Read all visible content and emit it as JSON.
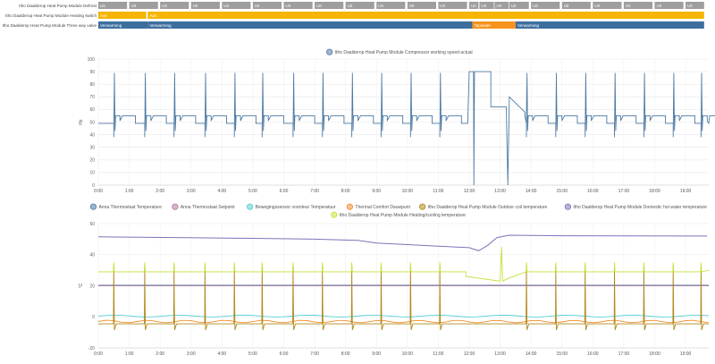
{
  "timeline": {
    "rows": [
      {
        "label": "Itho Daalderop Heat Pump Module Defrost",
        "segments": [
          {
            "text": "Uit",
            "start": 0,
            "end": 0.93,
            "color": "#9e9e9e"
          },
          {
            "text": "Uit",
            "start": 1.0,
            "end": 1.93,
            "color": "#9e9e9e"
          },
          {
            "text": "Uit",
            "start": 2.0,
            "end": 2.93,
            "color": "#9e9e9e"
          },
          {
            "text": "Uit",
            "start": 3.0,
            "end": 3.93,
            "color": "#9e9e9e"
          },
          {
            "text": "Uit",
            "start": 4.0,
            "end": 4.93,
            "color": "#9e9e9e"
          },
          {
            "text": "Uit",
            "start": 5.0,
            "end": 5.93,
            "color": "#9e9e9e"
          },
          {
            "text": "Uit",
            "start": 6.0,
            "end": 6.93,
            "color": "#9e9e9e"
          },
          {
            "text": "Uit",
            "start": 7.0,
            "end": 7.93,
            "color": "#9e9e9e"
          },
          {
            "text": "Uit",
            "start": 8.0,
            "end": 8.93,
            "color": "#9e9e9e"
          },
          {
            "text": "Uit",
            "start": 9.0,
            "end": 9.93,
            "color": "#9e9e9e"
          },
          {
            "text": "Uit",
            "start": 10.0,
            "end": 10.93,
            "color": "#9e9e9e"
          },
          {
            "text": "Uit",
            "start": 11.0,
            "end": 11.93,
            "color": "#9e9e9e"
          },
          {
            "text": "Uit",
            "start": 12.0,
            "end": 12.3,
            "color": "#9e9e9e"
          },
          {
            "text": "Uit",
            "start": 12.33,
            "end": 12.8,
            "color": "#9e9e9e"
          },
          {
            "text": "Uit",
            "start": 12.82,
            "end": 13.28,
            "color": "#9e9e9e"
          },
          {
            "text": "Uit",
            "start": 13.3,
            "end": 13.93,
            "color": "#9e9e9e"
          },
          {
            "text": "Uit",
            "start": 14.0,
            "end": 14.93,
            "color": "#9e9e9e"
          },
          {
            "text": "Uit",
            "start": 15.0,
            "end": 15.93,
            "color": "#9e9e9e"
          },
          {
            "text": "Uit",
            "start": 16.0,
            "end": 16.93,
            "color": "#9e9e9e"
          },
          {
            "text": "Uit",
            "start": 17.0,
            "end": 17.93,
            "color": "#9e9e9e"
          },
          {
            "text": "Uit",
            "start": 18.0,
            "end": 18.93,
            "color": "#9e9e9e"
          },
          {
            "text": "Uit",
            "start": 19.0,
            "end": 19.6,
            "color": "#9e9e9e"
          }
        ]
      },
      {
        "label": "Itho Daalderop Heat Pump Module Heating switch",
        "segments": [
          {
            "text": "Aan",
            "start": 0,
            "end": 1.55,
            "color": "#f5b500"
          },
          {
            "text": "Aan",
            "start": 1.6,
            "end": 19.6,
            "color": "#f5b500"
          }
        ]
      },
      {
        "label": "Itho Daalderop Heat Pump Module Three way valve",
        "segments": [
          {
            "text": "Verwarming",
            "start": 0,
            "end": 1.6,
            "color": "#3d6e9e"
          },
          {
            "text": "Verwarming",
            "start": 1.6,
            "end": 12.1,
            "color": "#3d6e9e"
          },
          {
            "text": "Tapwater",
            "start": 12.1,
            "end": 13.5,
            "color": "#f5931c"
          },
          {
            "text": "Verwarming",
            "start": 13.5,
            "end": 19.6,
            "color": "#3d6e9e"
          }
        ]
      }
    ]
  },
  "chart_data": [
    {
      "type": "line",
      "x_ticks": [
        "0:00",
        "1:00",
        "2:00",
        "3:00",
        "4:00",
        "5:00",
        "6:00",
        "7:00",
        "8:00",
        "9:00",
        "10:00",
        "11:00",
        "12:00",
        "13:00",
        "14:00",
        "15:00",
        "16:00",
        "17:00",
        "18:00",
        "19:00"
      ],
      "ylabel": "Hz",
      "ylim": [
        0,
        100
      ],
      "y_ticks": [
        0,
        10,
        20,
        30,
        40,
        50,
        60,
        70,
        80,
        90,
        100
      ],
      "grid": true,
      "legend_position": "top-center",
      "series": [
        {
          "name": "Itho Daalderop Heat Pump Module Compressor working speed actual",
          "color": "#4e7aa3",
          "baseline": 49,
          "active_level": 55,
          "spike_level": 89,
          "cycle_starts": [
            0.5,
            1.5,
            2.45,
            3.45,
            4.4,
            5.3,
            6.3,
            7.25,
            8.2,
            9.15,
            10.1,
            11.05,
            13.85,
            14.8,
            15.75,
            16.7,
            17.65,
            18.6,
            19.5
          ],
          "dhw_run": {
            "start": 12.0,
            "end": 13.3,
            "level": 90,
            "dips_to_zero": [
              12.15,
              13.3
            ]
          }
        }
      ]
    },
    {
      "type": "line",
      "x_ticks": [
        "0:00",
        "1:00",
        "2:00",
        "3:00",
        "4:00",
        "5:00",
        "6:00",
        "7:00",
        "8:00",
        "9:00",
        "10:00",
        "11:00",
        "12:00",
        "13:00",
        "14:00",
        "15:00",
        "16:00",
        "17:00",
        "18:00",
        "19:00"
      ],
      "ylabel": "°C",
      "ylim": [
        -20,
        60
      ],
      "y_ticks": [
        -20,
        0,
        20,
        40,
        60
      ],
      "grid": true,
      "legend_position": "top-center",
      "series": [
        {
          "name": "Anna Thermostaat Temperature",
          "color": "#4e79a7",
          "level": 20.3
        },
        {
          "name": "Anna Thermostaat Setpoint",
          "color": "#b07aa1",
          "level": 20.0
        },
        {
          "name": "Bewegingssensor voordeur Temperatuur",
          "color": "#55cdd4",
          "level": 0.5
        },
        {
          "name": "Thermal Comfort Dauwpunt",
          "color": "#f28e2b",
          "level": -3.0
        },
        {
          "name": "Itho Daalderop Heat Pump Module Outdoor coil temperature",
          "color": "#b08a1e",
          "level": -4.5,
          "spike_level": 33
        },
        {
          "name": "Itho Daalderop Heat Pump Module Domestic hot water temperature",
          "color": "#7b74b8",
          "points": [
            [
              0,
              51.5
            ],
            [
              2.5,
              51
            ],
            [
              5,
              50.5
            ],
            [
              7,
              50
            ],
            [
              8.4,
              49.2
            ],
            [
              9,
              47.5
            ],
            [
              10,
              46.5
            ],
            [
              11,
              45.5
            ],
            [
              12,
              44.5
            ],
            [
              12.3,
              42.5
            ],
            [
              12.6,
              46
            ],
            [
              12.9,
              51
            ],
            [
              13.3,
              52.5
            ],
            [
              15,
              52.2
            ],
            [
              19.7,
              52
            ]
          ]
        },
        {
          "name": "Itho Daalderop Heat Pump Module Heating/cooling temperature",
          "color": "#c4e23a",
          "level": 29,
          "spike_level": 35,
          "dhw_plateau": {
            "start": 11.9,
            "end": 13.3,
            "level": 26
          }
        }
      ]
    }
  ]
}
